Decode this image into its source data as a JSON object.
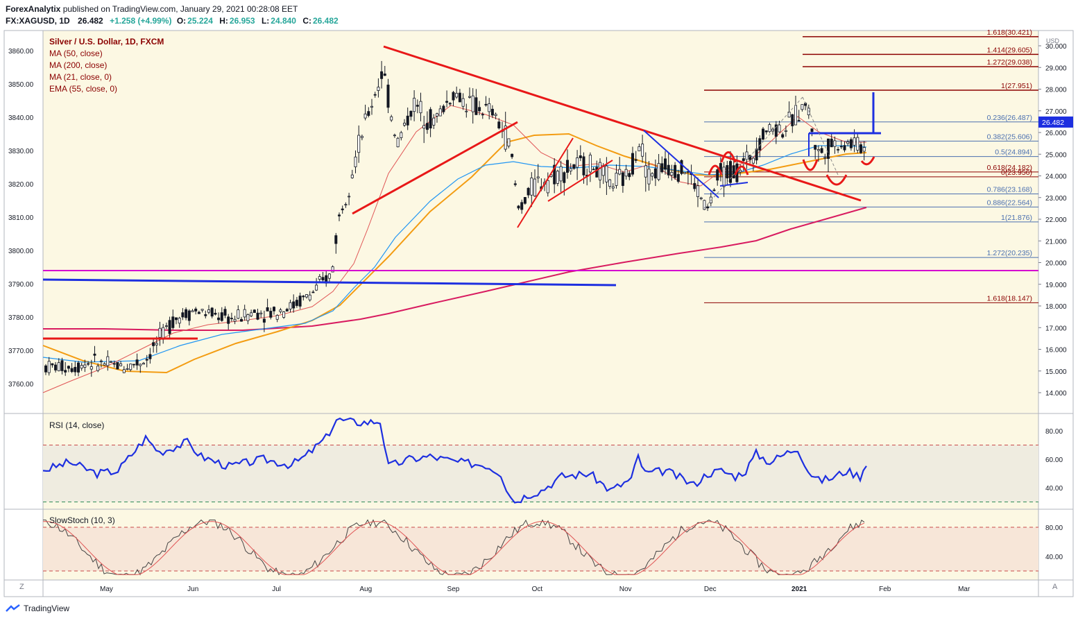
{
  "header": {
    "author": "ForexAnalytix",
    "published": "published on TradingView.com, January 29, 2021 00:28:08 EET",
    "symbol_line": "FX:XAGUSD, 1D",
    "last": "26.482",
    "change": "+1.258 (+4.99%)",
    "o_label": "O:",
    "o": "25.224",
    "h_label": "H:",
    "h": "26.953",
    "l_label": "L:",
    "l": "24.840",
    "c_label": "C:",
    "c": "26.482"
  },
  "legend": {
    "title": "Silver / U.S. Dollar, 1D, FXCM",
    "ma50": "MA (50, close)",
    "ma200": "MA (200, close)",
    "ma21": "MA (21, close, 0)",
    "ema55": "EMA (55, close, 0)"
  },
  "rsi_title": "RSI (14, close)",
  "stoch_title": "SlowStoch (10, 3)",
  "footer": {
    "brand": "TradingView",
    "z": "Z",
    "a": "A"
  },
  "colors": {
    "background": "#fcf8e3",
    "up_candle": "#ffffff",
    "down_candle": "#131722",
    "red_line": "#e81818",
    "blue_line": "#1d2fe0",
    "ma21": "#e05555",
    "ma50": "#2196f3",
    "ma200": "#d81b60",
    "ema55": "#f39c12",
    "magenta_h": "#d500d0",
    "rsi": "#1d2fe0",
    "fib_red": "#8b0000",
    "fib_blue": "#4a6fb0"
  },
  "chart_data": {
    "type": "candlestick",
    "symbol": "Silver / U.S. Dollar",
    "timeframe": "1D",
    "currency": "USD",
    "x_ticks": [
      "May",
      "Jun",
      "Jul",
      "Aug",
      "Sep",
      "Oct",
      "Nov",
      "Dec",
      "2021",
      "Feb",
      "Mar"
    ],
    "left_axis_ticks": [
      "3860.00",
      "3850.00",
      "3840.00",
      "3830.00",
      "3820.00",
      "3810.00",
      "3800.00",
      "3790.00",
      "3780.00",
      "3770.00",
      "3760.00"
    ],
    "right_axis_ticks": [
      "30.000",
      "29.000",
      "28.000",
      "27.000",
      "26.000",
      "25.000",
      "24.000",
      "23.000",
      "22.000",
      "21.000",
      "20.000",
      "19.000",
      "18.000",
      "17.000",
      "16.000",
      "15.000",
      "14.000"
    ],
    "y_range": [
      13.5,
      30.8
    ],
    "last_price_label": "26.482",
    "fib_levels": [
      {
        "label": "1.618(30.421)",
        "value": 30.421,
        "group": "upper"
      },
      {
        "label": "1.414(29.605)",
        "value": 29.605,
        "group": "upper"
      },
      {
        "label": "1.272(29.038)",
        "value": 29.038,
        "group": "upper"
      },
      {
        "label": "1(27.951)",
        "value": 27.951,
        "group": "upper"
      },
      {
        "label": "0.236(26.487)",
        "value": 26.487,
        "group": "retr"
      },
      {
        "label": "0.382(25.606)",
        "value": 25.606,
        "group": "retr"
      },
      {
        "label": "0.5(24.894)",
        "value": 24.894,
        "group": "retr"
      },
      {
        "label": "0.618(24.182)",
        "value": 24.182,
        "group": "retr"
      },
      {
        "label": "0(23.956)",
        "value": 23.956,
        "group": "retr"
      },
      {
        "label": "0.786(23.168)",
        "value": 23.168,
        "group": "retr"
      },
      {
        "label": "0.886(22.564)",
        "value": 22.564,
        "group": "retr"
      },
      {
        "label": "1(21.876)",
        "value": 21.876,
        "group": "retr"
      },
      {
        "label": "1.272(20.235)",
        "value": 20.235,
        "group": "ext"
      },
      {
        "label": "1.618(18.147)",
        "value": 18.147,
        "group": "ext"
      }
    ],
    "price_path": [
      [
        "2020-04-20",
        15.2
      ],
      [
        "2020-04-25",
        15.4
      ],
      [
        "2020-05-01",
        15.3
      ],
      [
        "2020-05-08",
        15.2
      ],
      [
        "2020-05-15",
        15.5
      ],
      [
        "2020-05-20",
        16.5
      ],
      [
        "2020-05-25",
        17.4
      ],
      [
        "2020-06-01",
        17.8
      ],
      [
        "2020-06-08",
        17.6
      ],
      [
        "2020-06-15",
        17.4
      ],
      [
        "2020-06-22",
        17.7
      ],
      [
        "2020-06-29",
        17.7
      ],
      [
        "2020-07-06",
        18.0
      ],
      [
        "2020-07-13",
        18.6
      ],
      [
        "2020-07-20",
        19.5
      ],
      [
        "2020-07-22",
        21.8
      ],
      [
        "2020-07-27",
        24.2
      ],
      [
        "2020-08-01",
        26.5
      ],
      [
        "2020-08-07",
        28.9
      ],
      [
        "2020-08-12",
        25.5
      ],
      [
        "2020-08-18",
        27.3
      ],
      [
        "2020-08-25",
        26.5
      ],
      [
        "2020-09-01",
        27.8
      ],
      [
        "2020-09-08",
        27.2
      ],
      [
        "2020-09-15",
        26.9
      ],
      [
        "2020-09-21",
        25.5
      ],
      [
        "2020-09-24",
        22.5
      ],
      [
        "2020-09-30",
        23.6
      ],
      [
        "2020-10-06",
        24.0
      ],
      [
        "2020-10-13",
        24.4
      ],
      [
        "2020-10-20",
        24.5
      ],
      [
        "2020-10-27",
        23.6
      ],
      [
        "2020-11-02",
        24.0
      ],
      [
        "2020-11-06",
        25.7
      ],
      [
        "2020-11-09",
        24.0
      ],
      [
        "2020-11-16",
        24.5
      ],
      [
        "2020-11-23",
        24.2
      ],
      [
        "2020-11-30",
        22.4
      ],
      [
        "2020-12-04",
        24.0
      ],
      [
        "2020-12-11",
        24.3
      ],
      [
        "2020-12-16",
        25.0
      ],
      [
        "2020-12-21",
        26.2
      ],
      [
        "2020-12-28",
        26.2
      ],
      [
        "2021-01-04",
        27.4
      ],
      [
        "2021-01-08",
        25.0
      ],
      [
        "2021-01-14",
        25.5
      ],
      [
        "2021-01-21",
        25.5
      ],
      [
        "2021-01-26",
        25.2
      ],
      [
        "2021-01-28",
        26.482
      ]
    ],
    "rsi": {
      "levels": [
        70,
        30
      ],
      "ticks": [
        "80.00",
        "60.00",
        "40.00"
      ],
      "last": 58
    },
    "slowstoch": {
      "levels": [
        80,
        20
      ],
      "ticks": [
        "80.00",
        "40.00"
      ]
    }
  }
}
